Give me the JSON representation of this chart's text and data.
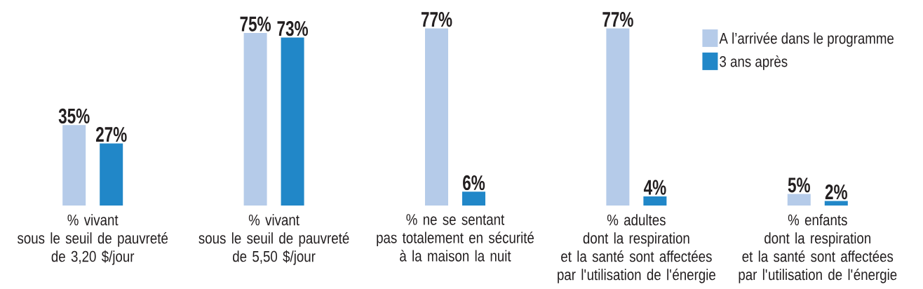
{
  "chart_data": {
    "type": "bar",
    "categories": [
      "% vivant\nsous le seuil de pauvreté\nde 3,20 $/jour",
      "% vivant\nsous le seuil de pauvreté\nde 5,50 $/jour",
      "% ne se sentant\npas totalement en sécurité\nà la maison la nuit",
      "% adultes\ndont la respiration\net la santé sont affectées\npar l'utilisation de l'énergie",
      "% enfants\ndont la respiration\net la santé sont affectées\npar l'utilisation de l'énergie"
    ],
    "series": [
      {
        "name": "A l’arrivée dans le programme",
        "color": "#b5cbe9",
        "values": [
          35,
          75,
          77,
          77,
          5
        ],
        "value_labels": [
          "35%",
          "75%",
          "77%",
          "77%",
          "5%"
        ]
      },
      {
        "name": "3 ans après",
        "color": "#2187c8",
        "values": [
          27,
          73,
          6,
          4,
          2
        ],
        "value_labels": [
          "27%",
          "73%",
          "6%",
          "4%",
          "2%"
        ]
      }
    ],
    "legend": "top right"
  }
}
